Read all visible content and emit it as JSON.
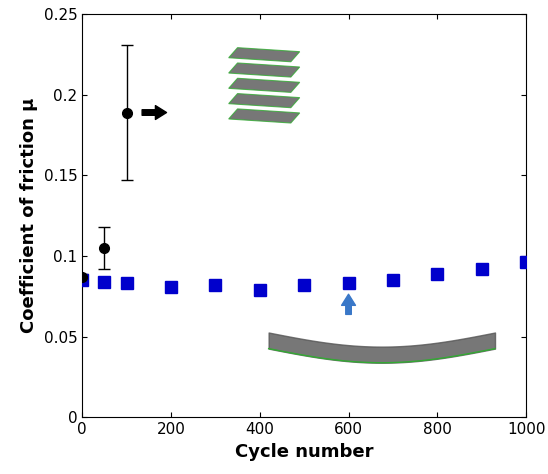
{
  "chart_data": {
    "type": "scatter",
    "x_label": "Cycle number",
    "y_label": "Coefficient of friction μ",
    "xlim": [
      0,
      1000
    ],
    "xticks": [
      0,
      200,
      400,
      600,
      800,
      1000
    ],
    "ylim": [
      0,
      0.25
    ],
    "yticks": [
      0,
      0.05,
      0.1,
      0.15,
      0.2,
      0.25
    ],
    "grid": false,
    "series": [
      {
        "color": "#000000",
        "marker": "circle",
        "x": [
          0,
          50,
          100
        ],
        "values": [
          0.087,
          0.105,
          0.189
        ],
        "errors": [
          0.002,
          0.013,
          0.042
        ]
      },
      {
        "color": "#0000cc",
        "marker": "square",
        "x": [
          0,
          50,
          100,
          200,
          300,
          400,
          500,
          600,
          700,
          800,
          900,
          1000
        ],
        "values": [
          0.085,
          0.084,
          0.083,
          0.081,
          0.082,
          0.079,
          0.082,
          0.083,
          0.085,
          0.089,
          0.092,
          0.096
        ]
      }
    ]
  }
}
